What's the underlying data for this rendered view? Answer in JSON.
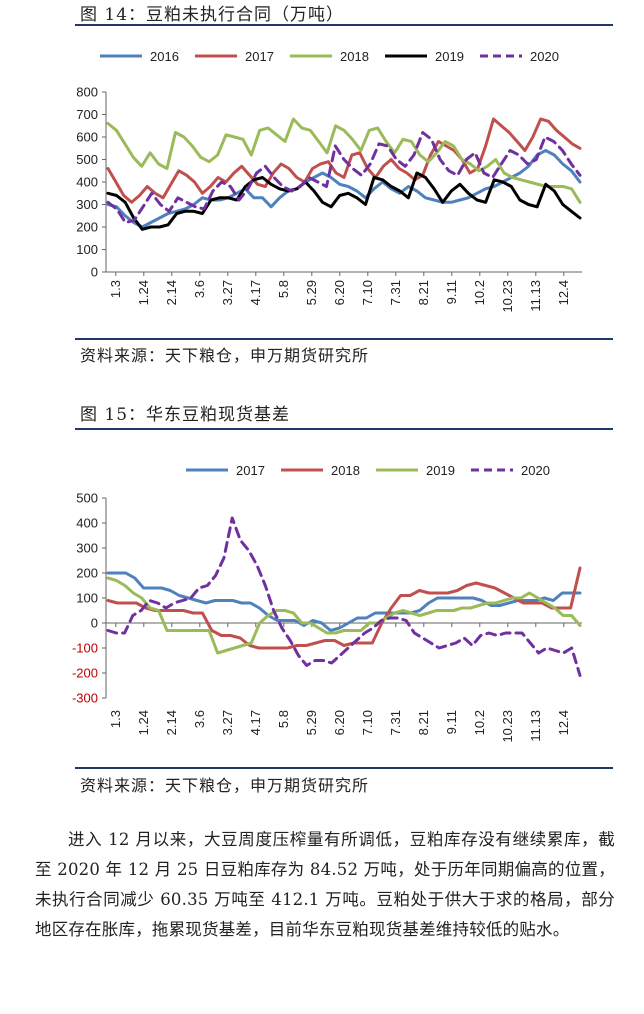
{
  "figure1": {
    "title": "图 14：豆粕未执行合同（万吨）",
    "source": "资料来源：天下粮仓，申万期货研究所"
  },
  "figure2": {
    "title": "图 15：华东豆粕现货基差",
    "source": "资料来源：天下粮仓，申万期货研究所"
  },
  "paragraph": "进入 12 月以来，大豆周度压榨量有所调低，豆粕库存没有继续累库，截至 2020 年 12 月 25 日豆粕库存为 84.52 万吨，处于历年同期偏高的位置，未执行合同减少 60.35 万吨至 412.1 万吨。豆粕处于供大于求的格局，部分地区存在胀库，拖累现货基差，目前华东豆粕现货基差维持较低的贴水。",
  "chart_data": [
    {
      "type": "line",
      "title": "",
      "xlabel": "",
      "ylabel": "",
      "x_ticks": [
        "1.3",
        "1.24",
        "2.14",
        "3.6",
        "3.27",
        "4.17",
        "5.8",
        "5.29",
        "6.20",
        "7.10",
        "7.31",
        "8.21",
        "9.11",
        "10.2",
        "10.23",
        "11.13",
        "12.4"
      ],
      "ylim": [
        0,
        800
      ],
      "y_ticks": [
        0,
        100,
        200,
        300,
        400,
        500,
        600,
        700,
        800
      ],
      "legend": "top",
      "grid": false,
      "series": [
        {
          "name": "2016",
          "color": "#4f81bd",
          "dash": "solid",
          "values": [
            300,
            290,
            250,
            220,
            200,
            220,
            240,
            260,
            270,
            280,
            300,
            330,
            320,
            320,
            330,
            350,
            370,
            330,
            330,
            290,
            330,
            360,
            370,
            400,
            420,
            440,
            420,
            390,
            380,
            360,
            330,
            370,
            400,
            370,
            350,
            380,
            360,
            330,
            320,
            310,
            310,
            320,
            330,
            350,
            370,
            380,
            400,
            420,
            440,
            470,
            520,
            540,
            520,
            480,
            450,
            400
          ]
        },
        {
          "name": "2017",
          "color": "#c0504d",
          "dash": "solid",
          "values": [
            460,
            400,
            340,
            310,
            340,
            380,
            350,
            330,
            390,
            450,
            430,
            400,
            350,
            380,
            420,
            400,
            440,
            470,
            430,
            390,
            380,
            440,
            480,
            460,
            420,
            400,
            460,
            480,
            490,
            440,
            420,
            520,
            530,
            460,
            420,
            470,
            500,
            460,
            440,
            410,
            430,
            520,
            580,
            560,
            540,
            500,
            440,
            460,
            560,
            680,
            650,
            620,
            580,
            540,
            600,
            680,
            670,
            630,
            600,
            570,
            550
          ]
        },
        {
          "name": "2018",
          "color": "#9bbb59",
          "dash": "solid",
          "values": [
            660,
            630,
            570,
            510,
            470,
            530,
            480,
            460,
            620,
            600,
            560,
            510,
            490,
            520,
            610,
            600,
            590,
            520,
            630,
            640,
            610,
            580,
            680,
            640,
            630,
            580,
            530,
            650,
            630,
            590,
            540,
            630,
            640,
            580,
            530,
            590,
            580,
            520,
            490,
            530,
            580,
            560,
            500,
            480,
            450,
            470,
            500,
            440,
            420,
            410,
            400,
            390,
            380,
            380,
            380,
            370,
            310
          ]
        },
        {
          "name": "2019",
          "color": "#000000",
          "dash": "solid",
          "values": [
            350,
            340,
            310,
            240,
            190,
            200,
            200,
            210,
            260,
            270,
            270,
            260,
            320,
            330,
            330,
            320,
            380,
            410,
            420,
            390,
            370,
            360,
            370,
            400,
            360,
            310,
            290,
            340,
            350,
            330,
            300,
            420,
            410,
            380,
            360,
            330,
            440,
            420,
            370,
            310,
            360,
            390,
            350,
            320,
            310,
            410,
            400,
            380,
            320,
            300,
            290,
            390,
            360,
            300,
            270,
            240
          ]
        },
        {
          "name": "2020",
          "color": "#7030a0",
          "dash": "dashed",
          "values": [
            310,
            280,
            220,
            230,
            290,
            350,
            300,
            270,
            330,
            310,
            290,
            280,
            360,
            400,
            380,
            320,
            370,
            440,
            470,
            420,
            380,
            360,
            380,
            420,
            400,
            380,
            560,
            500,
            460,
            430,
            480,
            570,
            560,
            500,
            470,
            520,
            620,
            590,
            500,
            450,
            430,
            500,
            530,
            440,
            420,
            480,
            540,
            520,
            480,
            500,
            600,
            580,
            540,
            480,
            430
          ]
        }
      ]
    },
    {
      "type": "line",
      "title": "",
      "xlabel": "",
      "ylabel": "",
      "x_ticks": [
        "1.3",
        "1.24",
        "2.14",
        "3.6",
        "3.27",
        "4.17",
        "5.8",
        "5.29",
        "6.20",
        "7.10",
        "7.31",
        "8.21",
        "9.11",
        "10.2",
        "10.23",
        "11.13",
        "12.4"
      ],
      "ylim": [
        -300,
        500
      ],
      "y_ticks": [
        -300,
        -200,
        -100,
        0,
        100,
        200,
        300,
        400,
        500
      ],
      "legend": "top",
      "grid": false,
      "series": [
        {
          "name": "2017",
          "color": "#4f81bd",
          "dash": "solid",
          "values": [
            200,
            200,
            200,
            180,
            140,
            140,
            140,
            130,
            110,
            100,
            90,
            80,
            90,
            90,
            90,
            80,
            80,
            60,
            30,
            10,
            10,
            10,
            -10,
            10,
            0,
            -30,
            -20,
            0,
            20,
            20,
            40,
            40,
            40,
            40,
            40,
            50,
            80,
            100,
            100,
            100,
            100,
            100,
            90,
            70,
            70,
            80,
            90,
            90,
            90,
            100,
            90,
            120,
            120,
            120
          ]
        },
        {
          "name": "2018",
          "color": "#c0504d",
          "dash": "solid",
          "values": [
            90,
            80,
            80,
            80,
            60,
            50,
            50,
            50,
            50,
            40,
            40,
            -30,
            -50,
            -50,
            -60,
            -90,
            -100,
            -100,
            -100,
            -100,
            -90,
            -90,
            -80,
            -70,
            -70,
            -90,
            -80,
            -80,
            -80,
            0,
            60,
            110,
            110,
            130,
            120,
            120,
            120,
            130,
            150,
            160,
            150,
            140,
            120,
            100,
            80,
            80,
            80,
            60,
            60,
            60,
            220
          ]
        },
        {
          "name": "2019",
          "color": "#9bbb59",
          "dash": "solid",
          "values": [
            180,
            170,
            150,
            120,
            100,
            60,
            50,
            -30,
            -30,
            -30,
            -30,
            -30,
            -30,
            -120,
            -110,
            -100,
            -90,
            -80,
            0,
            30,
            50,
            50,
            40,
            0,
            0,
            -20,
            -40,
            -40,
            -30,
            -30,
            -30,
            0,
            0,
            20,
            40,
            50,
            40,
            30,
            40,
            50,
            50,
            50,
            60,
            60,
            70,
            80,
            80,
            90,
            100,
            100,
            120,
            100,
            80,
            60,
            30,
            30,
            -10
          ]
        },
        {
          "name": "2020",
          "color": "#7030a0",
          "dash": "dashed",
          "values": [
            -30,
            -40,
            -40,
            30,
            50,
            90,
            80,
            60,
            80,
            90,
            100,
            140,
            150,
            190,
            260,
            420,
            330,
            290,
            230,
            150,
            50,
            -20,
            -70,
            -130,
            -170,
            -150,
            -150,
            -160,
            -130,
            -100,
            -70,
            -40,
            -20,
            10,
            20,
            20,
            10,
            -40,
            -60,
            -80,
            -100,
            -90,
            -80,
            -60,
            -90,
            -50,
            -40,
            -50,
            -40,
            -40,
            -40,
            -80,
            -120,
            -100,
            -110,
            -120,
            -100,
            -210
          ]
        }
      ]
    }
  ]
}
